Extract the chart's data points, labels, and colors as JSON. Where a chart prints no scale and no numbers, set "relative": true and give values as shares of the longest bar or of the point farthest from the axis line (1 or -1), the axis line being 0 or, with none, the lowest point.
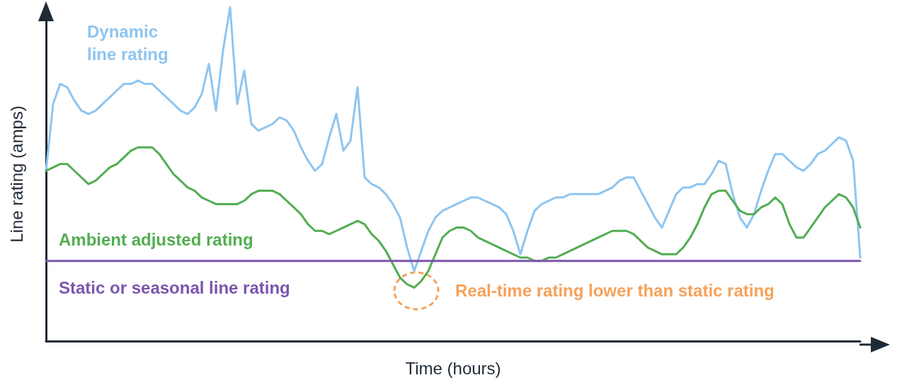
{
  "chart_data": {
    "type": "line",
    "relative": true,
    "xlabel": "Time (hours)",
    "ylabel": "Line rating (amps)",
    "legend": false,
    "grid": false,
    "marker": "none",
    "categories": [
      null,
      null,
      null,
      null,
      null,
      null,
      null,
      null,
      null,
      null,
      null,
      null,
      null,
      null,
      null,
      null,
      null,
      null,
      null,
      null,
      null,
      null,
      null,
      null,
      null,
      null,
      null,
      null,
      null,
      null,
      null,
      null,
      null,
      null,
      null,
      null,
      null,
      null,
      null,
      null,
      null,
      null,
      null,
      null,
      null,
      null,
      null,
      null,
      null,
      null,
      null,
      null,
      null,
      null,
      null,
      null,
      null,
      null,
      null,
      null,
      null,
      null,
      null,
      null,
      null,
      null,
      null,
      null,
      null,
      null,
      null,
      null,
      null,
      null,
      null,
      null,
      null,
      null,
      null,
      null,
      null,
      null,
      null,
      null,
      null,
      null,
      null,
      null,
      null,
      null,
      null,
      null,
      null,
      null,
      null,
      null,
      null,
      null,
      null,
      null,
      null,
      null,
      null,
      null,
      null,
      null,
      null,
      null,
      null,
      null,
      null,
      null,
      null,
      null,
      null,
      null
    ],
    "series": [
      {
        "name": "Dynamic line rating",
        "color": "#8ec5f0",
        "values": [
          0.51,
          0.71,
          0.77,
          0.76,
          0.72,
          0.69,
          0.68,
          0.69,
          0.71,
          0.73,
          0.75,
          0.77,
          0.77,
          0.78,
          0.77,
          0.77,
          0.75,
          0.73,
          0.71,
          0.69,
          0.68,
          0.7,
          0.74,
          0.83,
          0.69,
          0.87,
          1.0,
          0.71,
          0.81,
          0.65,
          0.63,
          0.64,
          0.65,
          0.67,
          0.66,
          0.63,
          0.58,
          0.54,
          0.51,
          0.53,
          0.61,
          0.68,
          0.57,
          0.6,
          0.76,
          0.49,
          0.47,
          0.46,
          0.44,
          0.41,
          0.37,
          0.28,
          0.21,
          0.27,
          0.33,
          0.37,
          0.39,
          0.4,
          0.41,
          0.42,
          0.43,
          0.43,
          0.42,
          0.41,
          0.4,
          0.38,
          0.33,
          0.26,
          0.33,
          0.39,
          0.41,
          0.42,
          0.43,
          0.43,
          0.44,
          0.44,
          0.44,
          0.44,
          0.44,
          0.45,
          0.46,
          0.48,
          0.49,
          0.49,
          0.45,
          0.41,
          0.37,
          0.34,
          0.39,
          0.44,
          0.46,
          0.46,
          0.47,
          0.47,
          0.5,
          0.54,
          0.53,
          0.44,
          0.37,
          0.34,
          0.38,
          0.45,
          0.51,
          0.56,
          0.56,
          0.54,
          0.52,
          0.51,
          0.53,
          0.56,
          0.57,
          0.59,
          0.61,
          0.6,
          0.54,
          0.25
        ]
      },
      {
        "name": "Ambient adjusted rating",
        "color": "#52ad52",
        "values": [
          0.51,
          0.52,
          0.53,
          0.53,
          0.51,
          0.49,
          0.47,
          0.48,
          0.5,
          0.52,
          0.53,
          0.55,
          0.57,
          0.58,
          0.58,
          0.58,
          0.56,
          0.53,
          0.5,
          0.48,
          0.46,
          0.45,
          0.43,
          0.42,
          0.41,
          0.41,
          0.41,
          0.41,
          0.42,
          0.44,
          0.45,
          0.45,
          0.45,
          0.44,
          0.42,
          0.4,
          0.38,
          0.35,
          0.33,
          0.33,
          0.32,
          0.33,
          0.34,
          0.35,
          0.36,
          0.35,
          0.32,
          0.3,
          0.27,
          0.23,
          0.19,
          0.17,
          0.16,
          0.18,
          0.21,
          0.26,
          0.31,
          0.33,
          0.34,
          0.34,
          0.33,
          0.31,
          0.3,
          0.29,
          0.28,
          0.27,
          0.26,
          0.25,
          0.25,
          0.24,
          0.24,
          0.25,
          0.25,
          0.26,
          0.27,
          0.28,
          0.29,
          0.3,
          0.31,
          0.32,
          0.33,
          0.33,
          0.33,
          0.32,
          0.3,
          0.28,
          0.27,
          0.26,
          0.26,
          0.26,
          0.28,
          0.31,
          0.35,
          0.4,
          0.44,
          0.45,
          0.45,
          0.42,
          0.39,
          0.38,
          0.38,
          0.4,
          0.41,
          0.43,
          0.41,
          0.35,
          0.31,
          0.31,
          0.34,
          0.37,
          0.4,
          0.42,
          0.44,
          0.43,
          0.4,
          0.34
        ]
      },
      {
        "name": "Static or seasonal line rating",
        "color": "#7b55ad",
        "values": [
          0.24,
          0.24,
          0.24,
          0.24,
          0.24,
          0.24,
          0.24,
          0.24,
          0.24,
          0.24,
          0.24,
          0.24,
          0.24,
          0.24,
          0.24,
          0.24,
          0.24,
          0.24,
          0.24,
          0.24,
          0.24,
          0.24,
          0.24,
          0.24,
          0.24,
          0.24,
          0.24,
          0.24,
          0.24,
          0.24,
          0.24,
          0.24,
          0.24,
          0.24,
          0.24,
          0.24,
          0.24,
          0.24,
          0.24,
          0.24,
          0.24,
          0.24,
          0.24,
          0.24,
          0.24,
          0.24,
          0.24,
          0.24,
          0.24,
          0.24,
          0.24,
          0.24,
          0.24,
          0.24,
          0.24,
          0.24,
          0.24,
          0.24,
          0.24,
          0.24,
          0.24,
          0.24,
          0.24,
          0.24,
          0.24,
          0.24,
          0.24,
          0.24,
          0.24,
          0.24,
          0.24,
          0.24,
          0.24,
          0.24,
          0.24,
          0.24,
          0.24,
          0.24,
          0.24,
          0.24,
          0.24,
          0.24,
          0.24,
          0.24,
          0.24,
          0.24,
          0.24,
          0.24,
          0.24,
          0.24,
          0.24,
          0.24,
          0.24,
          0.24,
          0.24,
          0.24,
          0.24,
          0.24,
          0.24,
          0.24,
          0.24,
          0.24,
          0.24,
          0.24,
          0.24,
          0.24,
          0.24,
          0.24,
          0.24,
          0.24,
          0.24,
          0.24,
          0.24,
          0.24,
          0.24,
          0.24
        ]
      }
    ],
    "annotations": [
      "Real-time rating lower than static rating"
    ]
  }
}
